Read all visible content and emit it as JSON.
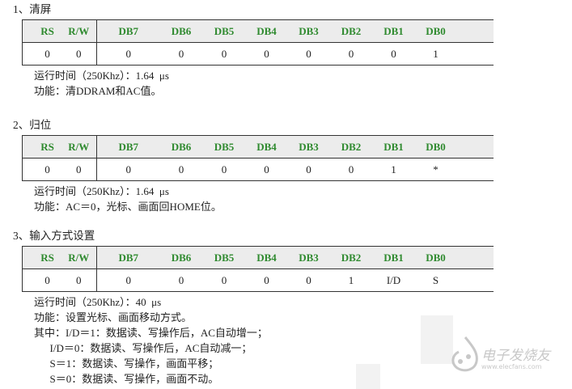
{
  "columns": [
    "RS",
    "R/W",
    "DB7",
    "DB6",
    "DB5",
    "DB4",
    "DB3",
    "DB2",
    "DB1",
    "DB0"
  ],
  "sections": [
    {
      "title": "1、清屏",
      "values": [
        "0",
        "0",
        "0",
        "0",
        "0",
        "0",
        "0",
        "0",
        "0",
        "1"
      ],
      "lines": [
        "运行时间（250Khz）：1.64  μs",
        "功能：清DDRAM和AC值。"
      ]
    },
    {
      "title": "2、归位",
      "values": [
        "0",
        "0",
        "0",
        "0",
        "0",
        "0",
        "0",
        "0",
        "1",
        "*"
      ],
      "lines": [
        "运行时间（250Khz）：1.64  μs",
        "功能：AC＝0，光标、画面回HOME位。"
      ]
    },
    {
      "title": "3、输入方式设置",
      "values": [
        "0",
        "0",
        "0",
        "0",
        "0",
        "0",
        "0",
        "1",
        "I/D",
        "S"
      ],
      "lines": [
        "运行时间（250Khz）：40  μs",
        "功能：设置光标、画面移动方式。",
        "其中：I/D＝1：数据读、写操作后，AC自动增一；",
        "      I/D＝0：数据读、写操作后，AC自动减一；",
        "      S＝1：数据读、写操作，画面平移；",
        "      S＝0：数据读、写操作，画面不动。"
      ]
    }
  ],
  "watermark": {
    "name": "电子发烧友",
    "url": "www.elecfans.com"
  }
}
